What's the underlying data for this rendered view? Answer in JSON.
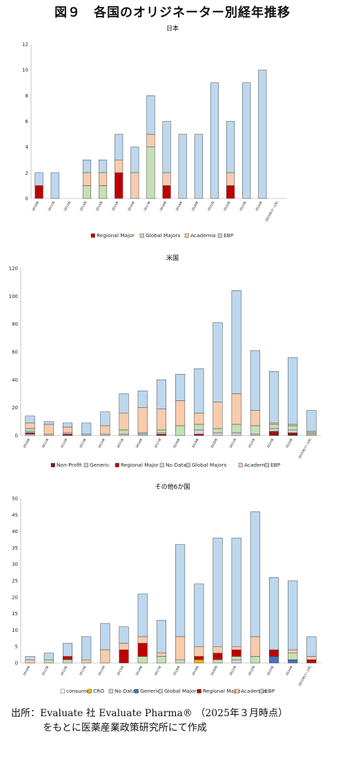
{
  "figure_title": "図９　各国のオリジネーター別経年推移",
  "source_line1": "出所：Evaluate 社 Evaluate Pharma® （2025年３月時点）",
  "source_line2": "をもとに医薬産業政策研究所にて作成",
  "colors": {
    "Regional Major": "#c00000",
    "Global Majors": "#c5e0b4",
    "Academia": "#f8cbad",
    "EBP": "#bdd7ee",
    "Non-Profit": "#7b1c1c",
    "Generic": "#bdd7ee",
    "No Data": "#d0d5db",
    "consumer": "#ffffff",
    "CRO": "#f0b800",
    "Generic (other)": "#4472c4"
  },
  "chart_data": [
    {
      "type": "bar",
      "stacked": true,
      "title": "日本",
      "categories": [
        "2010年",
        "2011年",
        "2012年",
        "2013年",
        "2014年",
        "2015年",
        "2016年",
        "2017年",
        "2018年",
        "2019年",
        "2020年",
        "2021年",
        "2022年",
        "2023年",
        "2024年",
        "2025年(1～3月)"
      ],
      "ylim": [
        0,
        12
      ],
      "yticks": [
        0,
        2,
        4,
        6,
        8,
        10,
        12
      ],
      "legend": [
        "Regional Major",
        "Global Majors",
        "Academia",
        "EBP"
      ],
      "series": [
        {
          "name": "Regional Major",
          "color": "#c00000",
          "values": [
            1,
            0,
            0,
            0,
            0,
            2,
            0,
            0,
            1,
            0,
            0,
            0,
            1,
            0,
            0,
            0
          ]
        },
        {
          "name": "Global Majors",
          "color": "#c5e0b4",
          "values": [
            0,
            0,
            0,
            1,
            1,
            0,
            0,
            4,
            0,
            0,
            0,
            0,
            0,
            0,
            0,
            0
          ]
        },
        {
          "name": "Academia",
          "color": "#f8cbad",
          "values": [
            0,
            0,
            0,
            1,
            1,
            1,
            2,
            1,
            1,
            0,
            0,
            0,
            1,
            0,
            0,
            0
          ]
        },
        {
          "name": "EBP",
          "color": "#bdd7ee",
          "values": [
            1,
            2,
            0,
            1,
            1,
            2,
            2,
            3,
            4,
            5,
            5,
            9,
            4,
            9,
            10,
            0
          ]
        }
      ]
    },
    {
      "type": "bar",
      "stacked": true,
      "title": "米国",
      "categories": [
        "2010年",
        "2011年",
        "2012年",
        "2013年",
        "2014年",
        "2015年",
        "2016年",
        "2017年",
        "2018年",
        "2019年",
        "2020年",
        "2021年",
        "2022年",
        "2023年",
        "2024年",
        "2025年(1～3月)"
      ],
      "ylim": [
        0,
        120
      ],
      "yticks": [
        0,
        20,
        40,
        60,
        80,
        100,
        120
      ],
      "legend": [
        "Non-Profit",
        "Generic",
        "Regional Major",
        "No Data",
        "Global Majors",
        "Academia",
        "EBP"
      ],
      "series": [
        {
          "name": "Non-Profit",
          "color": "#7b1c1c",
          "values": [
            0,
            0,
            0,
            0,
            0,
            0,
            0,
            0,
            0,
            0,
            0,
            0,
            0,
            1,
            1,
            0
          ]
        },
        {
          "name": "Generic",
          "color": "#bdd7ee",
          "values": [
            1,
            0,
            0,
            0,
            0,
            0,
            0,
            0,
            0,
            0,
            0,
            0,
            0,
            0,
            0,
            0
          ]
        },
        {
          "name": "Regional Major",
          "color": "#c00000",
          "values": [
            1,
            0,
            1,
            0,
            0,
            0,
            0,
            1,
            0,
            1,
            0,
            0,
            0,
            2,
            1,
            0
          ]
        },
        {
          "name": "No Data",
          "color": "#d0d5db",
          "values": [
            1,
            0,
            1,
            1,
            1,
            1,
            1,
            1,
            0,
            3,
            2,
            2,
            1,
            2,
            2,
            1
          ]
        },
        {
          "name": "Global Majors",
          "color": "#c5e0b4",
          "values": [
            2,
            1,
            0,
            0,
            0,
            3,
            1,
            2,
            7,
            4,
            3,
            6,
            6,
            3,
            3,
            1
          ]
        },
        {
          "name": "Academia",
          "color": "#f8cbad",
          "values": [
            4,
            7,
            4,
            0,
            6,
            12,
            18,
            15,
            18,
            8,
            19,
            22,
            11,
            1,
            1,
            1
          ]
        },
        {
          "name": "EBP",
          "color": "#bdd7ee",
          "values": [
            5,
            2,
            3,
            8,
            10,
            14,
            12,
            21,
            19,
            32,
            57,
            74,
            43,
            37,
            48,
            15
          ]
        }
      ]
    },
    {
      "type": "bar",
      "stacked": true,
      "title": "その他6か国",
      "categories": [
        "2010年",
        "2011年",
        "2012年",
        "2013年",
        "2014年",
        "2015年",
        "2016年",
        "2017年",
        "2018年",
        "2019年",
        "2020年",
        "2021年",
        "2022年",
        "2023年",
        "2024年",
        "2025年(1～3月)"
      ],
      "ylim": [
        0,
        50
      ],
      "yticks": [
        0,
        5,
        10,
        15,
        20,
        25,
        30,
        35,
        40,
        45,
        50
      ],
      "legend": [
        "consumer",
        "CRO",
        "No Data",
        "Generic",
        "Global Majors",
        "Regional Major",
        "Academia",
        "EBP"
      ],
      "series": [
        {
          "name": "consumer",
          "color": "#ffffff",
          "values": [
            0,
            0,
            0,
            0,
            0,
            0,
            0,
            0,
            0,
            0,
            0,
            0,
            0,
            0,
            0,
            0
          ]
        },
        {
          "name": "CRO",
          "color": "#f0b800",
          "values": [
            0,
            0,
            0,
            0,
            0,
            0,
            0,
            0,
            0,
            1,
            0,
            0,
            0,
            0,
            0,
            0
          ]
        },
        {
          "name": "No Data",
          "color": "#d0d5db",
          "values": [
            0,
            0,
            0,
            0,
            0,
            0,
            0,
            0,
            0,
            0,
            0,
            1,
            0,
            0,
            0,
            0
          ]
        },
        {
          "name": "Generic",
          "color": "#4472c4",
          "values": [
            0,
            0,
            0,
            0,
            0,
            0,
            0,
            0,
            0,
            0,
            0,
            0,
            0,
            2,
            1,
            0
          ]
        },
        {
          "name": "Global Majors",
          "color": "#c5e0b4",
          "values": [
            0,
            1,
            1,
            0,
            0,
            0,
            2,
            2,
            1,
            0,
            1,
            1,
            2,
            0,
            2,
            0
          ]
        },
        {
          "name": "Regional Major",
          "color": "#c00000",
          "values": [
            0,
            0,
            1,
            0,
            0,
            4,
            4,
            0,
            0,
            1,
            2,
            2,
            0,
            2,
            0,
            1
          ]
        },
        {
          "name": "Academia",
          "color": "#f8cbad",
          "values": [
            1,
            0,
            0,
            1,
            4,
            2,
            2,
            1,
            7,
            3,
            2,
            1,
            6,
            0,
            1,
            1
          ]
        },
        {
          "name": "EBP",
          "color": "#bdd7ee",
          "values": [
            1,
            2,
            4,
            7,
            8,
            5,
            13,
            10,
            28,
            19,
            33,
            33,
            38,
            22,
            21,
            6
          ]
        }
      ]
    }
  ]
}
